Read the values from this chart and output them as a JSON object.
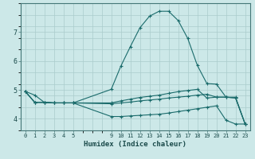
{
  "xlabel": "Humidex (Indice chaleur)",
  "xlim": [
    -0.5,
    23.5
  ],
  "ylim": [
    3.6,
    8.0
  ],
  "yticks": [
    4,
    5,
    6,
    7
  ],
  "xticks": [
    0,
    1,
    2,
    3,
    4,
    5,
    9,
    10,
    11,
    12,
    13,
    14,
    15,
    16,
    17,
    18,
    19,
    20,
    21,
    22,
    23
  ],
  "bg_color": "#cce8e8",
  "grid_color": "#aacccc",
  "line_color": "#1a6b6b",
  "lines": [
    {
      "x": [
        0,
        1,
        2,
        3,
        4,
        5,
        9,
        10,
        11,
        12,
        13,
        14,
        15,
        16,
        17,
        18,
        19,
        20,
        21,
        22,
        23
      ],
      "y": [
        4.95,
        4.82,
        4.57,
        4.55,
        4.55,
        4.55,
        5.02,
        5.82,
        6.5,
        7.15,
        7.55,
        7.72,
        7.72,
        7.4,
        6.78,
        5.85,
        5.22,
        5.2,
        4.75,
        4.75,
        3.82
      ]
    },
    {
      "x": [
        0,
        1,
        2,
        3,
        4,
        5,
        9,
        10,
        11,
        12,
        13,
        14,
        15,
        16,
        17,
        18,
        19,
        20,
        21,
        22,
        23
      ],
      "y": [
        4.95,
        4.57,
        4.57,
        4.55,
        4.55,
        4.55,
        4.08,
        4.08,
        4.1,
        4.12,
        4.14,
        4.16,
        4.2,
        4.25,
        4.3,
        4.35,
        4.4,
        4.45,
        3.95,
        3.82,
        3.82
      ]
    },
    {
      "x": [
        0,
        1,
        2,
        3,
        4,
        5,
        9,
        10,
        11,
        12,
        13,
        14,
        15,
        16,
        17,
        18,
        19,
        20,
        21,
        22,
        23
      ],
      "y": [
        4.95,
        4.57,
        4.57,
        4.55,
        4.55,
        4.55,
        4.55,
        4.62,
        4.68,
        4.74,
        4.78,
        4.82,
        4.88,
        4.94,
        4.98,
        5.02,
        4.72,
        4.75,
        4.75,
        4.72,
        3.82
      ]
    },
    {
      "x": [
        0,
        1,
        2,
        3,
        4,
        5,
        9,
        10,
        11,
        12,
        13,
        14,
        15,
        16,
        17,
        18,
        19,
        20,
        21,
        22,
        23
      ],
      "y": [
        4.95,
        4.57,
        4.57,
        4.55,
        4.55,
        4.55,
        4.52,
        4.55,
        4.58,
        4.62,
        4.65,
        4.68,
        4.72,
        4.75,
        4.78,
        4.82,
        4.85,
        4.75,
        4.75,
        4.72,
        3.82
      ]
    }
  ]
}
